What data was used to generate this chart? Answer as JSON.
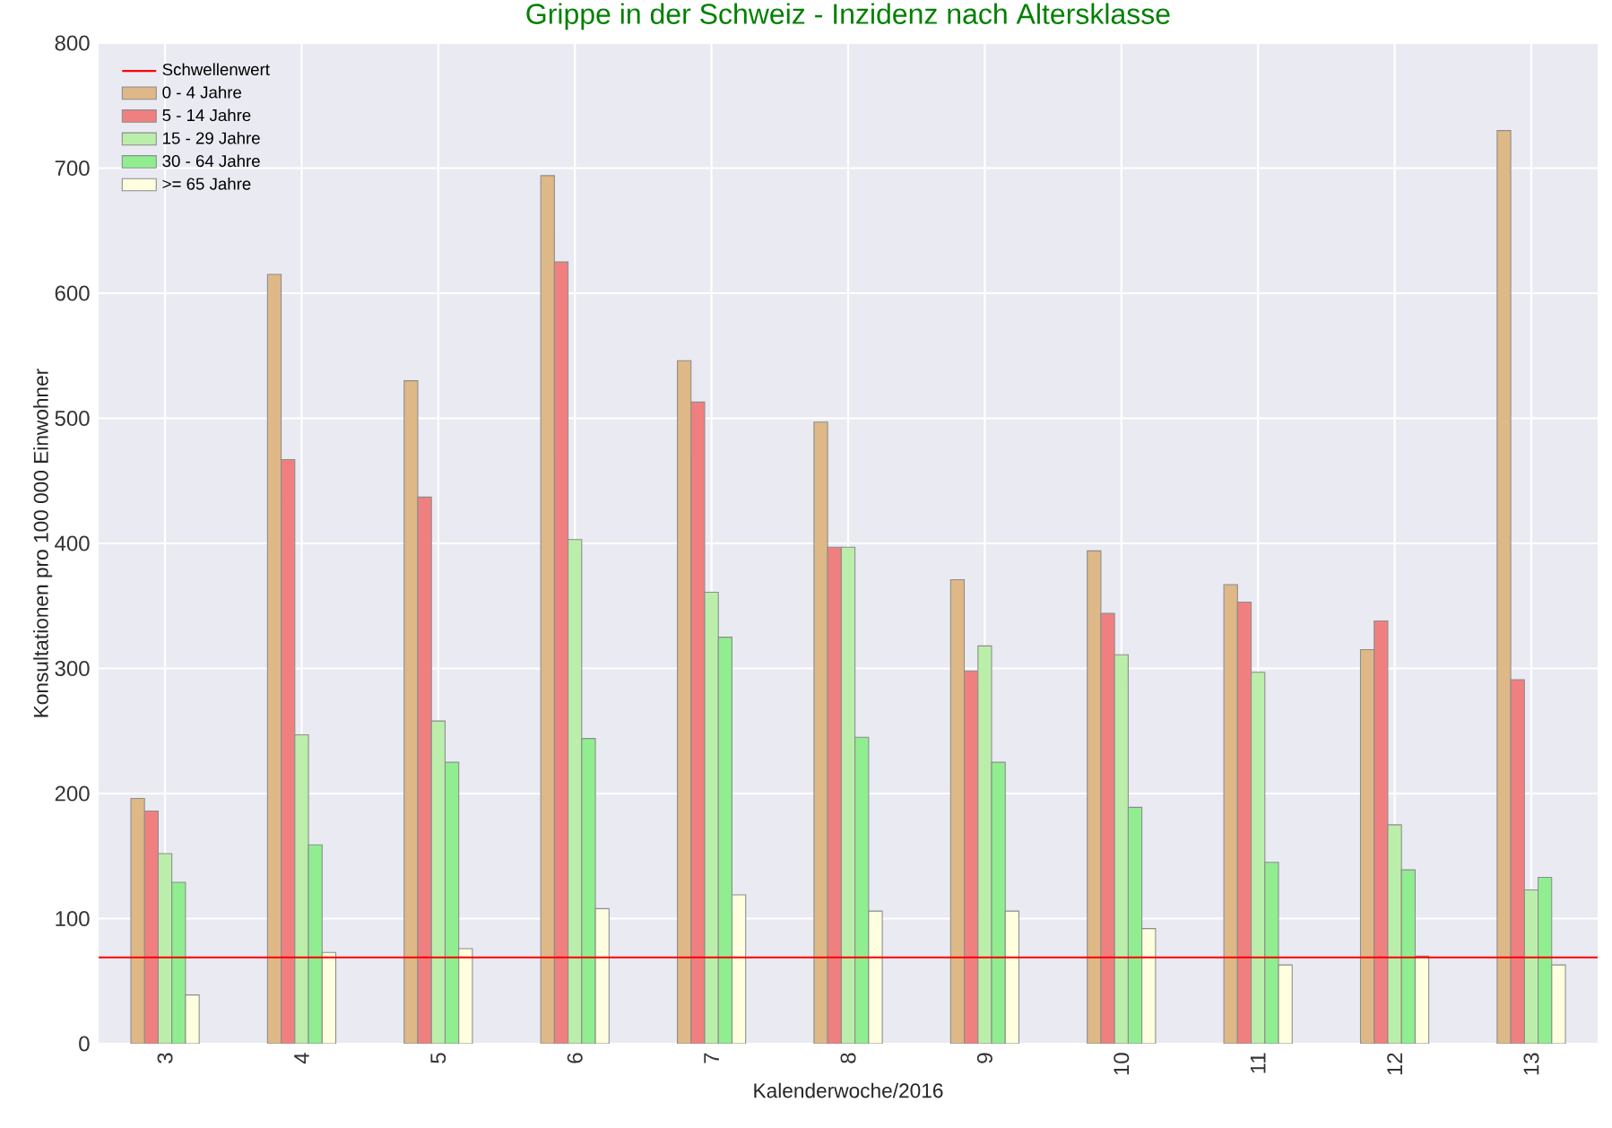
{
  "chart_data": {
    "type": "bar",
    "title": "Grippe in der Schweiz - Inzidenz nach Altersklasse",
    "xlabel": "Kalenderwoche/2016",
    "ylabel": "Konsultationen pro 100 000 Einwohner",
    "categories": [
      "3",
      "4",
      "5",
      "6",
      "7",
      "8",
      "9",
      "10",
      "11",
      "12",
      "13"
    ],
    "series": [
      {
        "name": "0 - 4 Jahre",
        "color": "#deb887",
        "values": [
          196,
          615,
          530,
          694,
          546,
          497,
          371,
          394,
          367,
          315,
          730
        ]
      },
      {
        "name": "5 - 14 Jahre",
        "color": "#f08080",
        "values": [
          186,
          467,
          437,
          625,
          513,
          397,
          298,
          344,
          353,
          338,
          291
        ]
      },
      {
        "name": "15 - 29 Jahre",
        "color": "#bbeeaa",
        "values": [
          152,
          247,
          258,
          403,
          361,
          397,
          318,
          311,
          297,
          175,
          123
        ]
      },
      {
        "name": "30 - 64 Jahre",
        "color": "#90ee90",
        "values": [
          129,
          159,
          225,
          244,
          325,
          245,
          225,
          189,
          145,
          139,
          133
        ]
      },
      {
        "name": ">= 65 Jahre",
        "color": "#ffffe0",
        "values": [
          39,
          73,
          76,
          108,
          119,
          106,
          106,
          92,
          63,
          70,
          63
        ]
      }
    ],
    "ref_lines": [
      {
        "axis": "y",
        "value": 69,
        "label": "Schwellenwert",
        "color": "#ff0000"
      }
    ],
    "ylim": [
      0,
      800
    ],
    "yticks": [
      0,
      100,
      200,
      300,
      400,
      500,
      600,
      700,
      800
    ],
    "grid": true,
    "legend": "top left"
  }
}
